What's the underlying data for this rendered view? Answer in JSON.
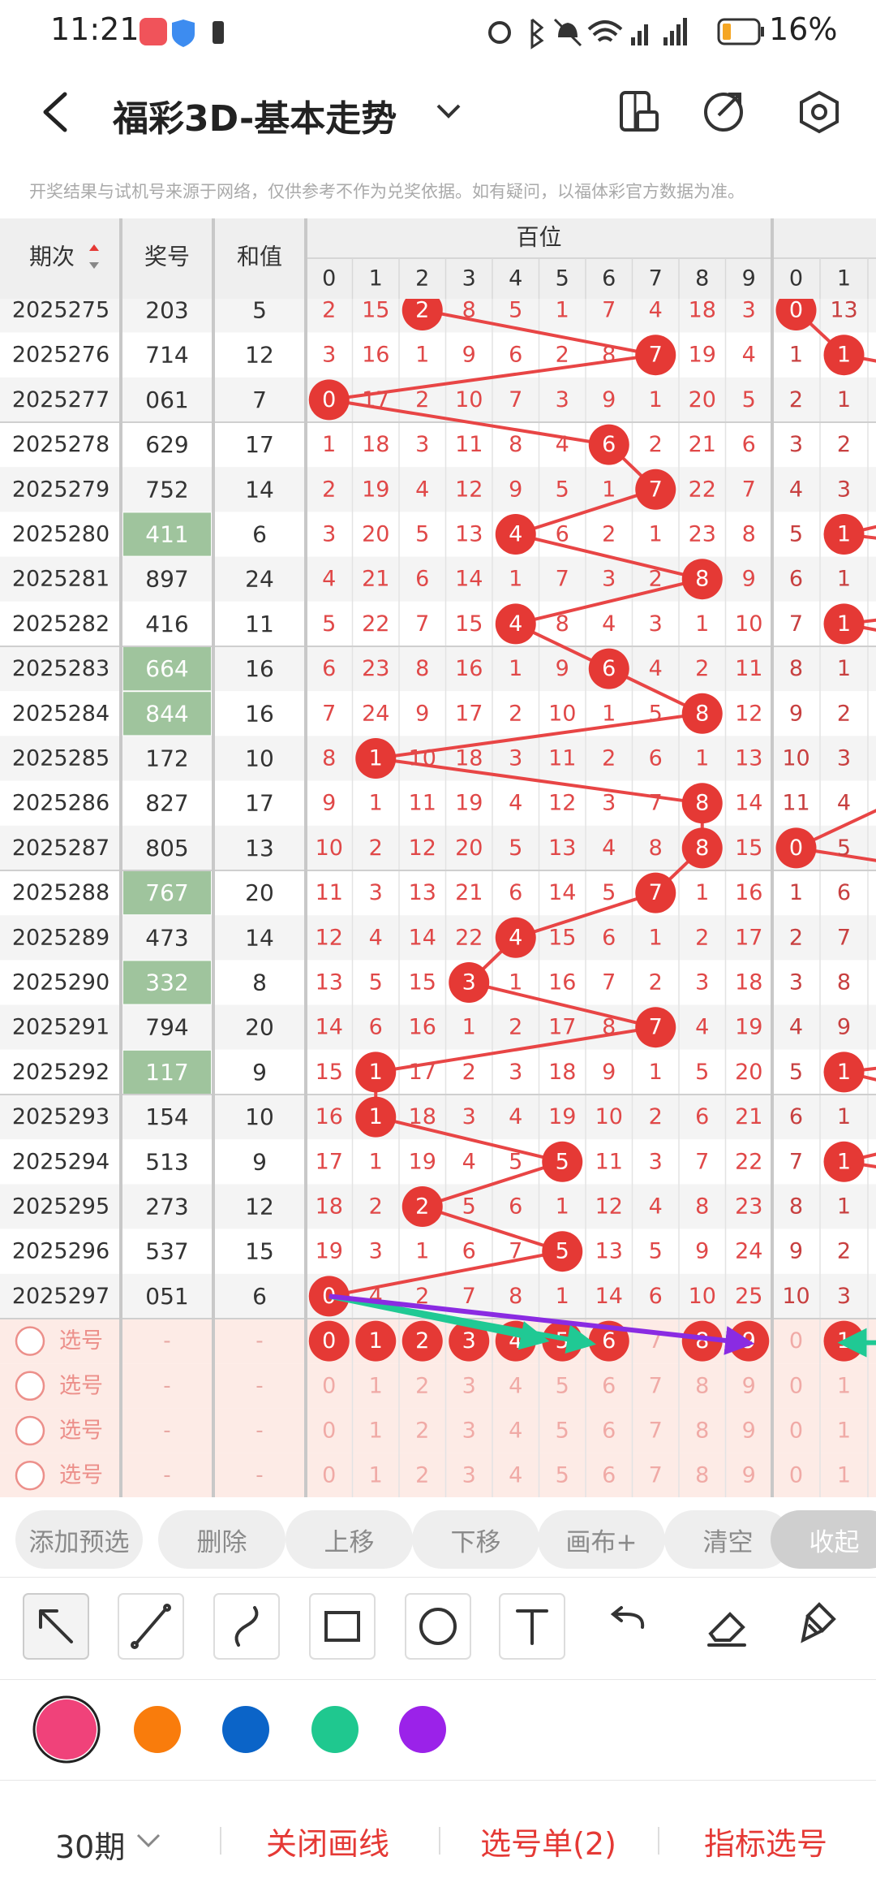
{
  "status_bar": {
    "time": "11:21",
    "battery": "16%"
  },
  "header": {
    "title": "福彩3D-基本走势"
  },
  "notice": "开奖结果与试机号来源于网络，仅供参考不作为兑奖依据。如有疑问，以福体彩官方数据为准。",
  "table": {
    "headers": {
      "period": "期次",
      "number": "奖号",
      "sum": "和值",
      "group": "百位"
    },
    "digit_columns": [
      0,
      1,
      2,
      3,
      4,
      5,
      6,
      7,
      8,
      9
    ],
    "next_group_columns": [
      0,
      1
    ],
    "rows": [
      {
        "period": "2025275",
        "number": "203",
        "sum": 5,
        "hundreds": [
          2,
          15,
          2,
          8,
          5,
          1,
          7,
          4,
          18,
          3
        ],
        "tens": [
          0,
          13
        ]
      },
      {
        "period": "2025276",
        "number": "714",
        "sum": 12,
        "hundreds": [
          3,
          16,
          1,
          9,
          6,
          2,
          8,
          7,
          19,
          4
        ],
        "tens": [
          1,
          1
        ]
      },
      {
        "period": "2025277",
        "number": "061",
        "sum": 7,
        "hundreds": [
          0,
          17,
          2,
          10,
          7,
          3,
          9,
          1,
          20,
          5
        ],
        "tens": [
          2,
          1
        ]
      },
      {
        "period": "2025278",
        "number": "629",
        "sum": 17,
        "hundreds": [
          1,
          18,
          3,
          11,
          8,
          4,
          6,
          2,
          21,
          6
        ],
        "tens": [
          3,
          2
        ]
      },
      {
        "period": "2025279",
        "number": "752",
        "sum": 14,
        "hundreds": [
          2,
          19,
          4,
          12,
          9,
          5,
          1,
          7,
          22,
          7
        ],
        "tens": [
          4,
          3
        ]
      },
      {
        "period": "2025280",
        "number": "411",
        "sum": 6,
        "hundreds": [
          3,
          20,
          5,
          13,
          4,
          6,
          2,
          1,
          23,
          8
        ],
        "tens": [
          5,
          1
        ]
      },
      {
        "period": "2025281",
        "number": "897",
        "sum": 24,
        "hundreds": [
          4,
          21,
          6,
          14,
          1,
          7,
          3,
          2,
          8,
          9
        ],
        "tens": [
          6,
          1
        ]
      },
      {
        "period": "2025282",
        "number": "416",
        "sum": 11,
        "hundreds": [
          5,
          22,
          7,
          15,
          4,
          8,
          4,
          3,
          1,
          10
        ],
        "tens": [
          7,
          1
        ]
      },
      {
        "period": "2025283",
        "number": "664",
        "sum": 16,
        "hundreds": [
          6,
          23,
          8,
          16,
          1,
          9,
          6,
          4,
          2,
          11
        ],
        "tens": [
          8,
          1
        ]
      },
      {
        "period": "2025284",
        "number": "844",
        "sum": 16,
        "hundreds": [
          7,
          24,
          9,
          17,
          2,
          10,
          1,
          5,
          8,
          12
        ],
        "tens": [
          9,
          2
        ]
      },
      {
        "period": "2025285",
        "number": "172",
        "sum": 10,
        "hundreds": [
          8,
          1,
          10,
          18,
          3,
          11,
          2,
          6,
          1,
          13
        ],
        "tens": [
          10,
          3
        ]
      },
      {
        "period": "2025286",
        "number": "827",
        "sum": 17,
        "hundreds": [
          9,
          1,
          11,
          19,
          4,
          12,
          3,
          7,
          8,
          14
        ],
        "tens": [
          11,
          4
        ]
      },
      {
        "period": "2025287",
        "number": "805",
        "sum": 13,
        "hundreds": [
          10,
          2,
          12,
          20,
          5,
          13,
          4,
          8,
          8,
          15
        ],
        "tens": [
          0,
          5
        ]
      },
      {
        "period": "2025288",
        "number": "767",
        "sum": 20,
        "hundreds": [
          11,
          3,
          13,
          21,
          6,
          14,
          5,
          7,
          1,
          16
        ],
        "tens": [
          1,
          6
        ]
      },
      {
        "period": "2025289",
        "number": "473",
        "sum": 14,
        "hundreds": [
          12,
          4,
          14,
          22,
          4,
          15,
          6,
          1,
          2,
          17
        ],
        "tens": [
          2,
          7
        ]
      },
      {
        "period": "2025290",
        "number": "332",
        "sum": 8,
        "hundreds": [
          13,
          5,
          15,
          3,
          1,
          16,
          7,
          2,
          3,
          18
        ],
        "tens": [
          3,
          8
        ]
      },
      {
        "period": "2025291",
        "number": "794",
        "sum": 20,
        "hundreds": [
          14,
          6,
          16,
          1,
          2,
          17,
          8,
          7,
          4,
          19
        ],
        "tens": [
          4,
          9
        ]
      },
      {
        "period": "2025292",
        "number": "117",
        "sum": 9,
        "hundreds": [
          15,
          1,
          17,
          2,
          3,
          18,
          9,
          1,
          5,
          20
        ],
        "tens": [
          5,
          1
        ]
      },
      {
        "period": "2025293",
        "number": "154",
        "sum": 10,
        "hundreds": [
          16,
          1,
          18,
          3,
          4,
          19,
          10,
          2,
          6,
          21
        ],
        "tens": [
          6,
          1
        ]
      },
      {
        "period": "2025294",
        "number": "513",
        "sum": 9,
        "hundreds": [
          17,
          1,
          19,
          4,
          5,
          5,
          11,
          3,
          7,
          22
        ],
        "tens": [
          7,
          1
        ]
      },
      {
        "period": "2025295",
        "number": "273",
        "sum": 12,
        "hundreds": [
          18,
          2,
          2,
          5,
          6,
          1,
          12,
          4,
          8,
          23
        ],
        "tens": [
          8,
          1
        ]
      },
      {
        "period": "2025296",
        "number": "537",
        "sum": 15,
        "hundreds": [
          19,
          3,
          1,
          6,
          7,
          5,
          13,
          5,
          9,
          24
        ],
        "tens": [
          9,
          2
        ]
      },
      {
        "period": "2025297",
        "number": "051",
        "sum": 6,
        "hundreds": [
          0,
          4,
          2,
          7,
          8,
          1,
          14,
          6,
          10,
          25
        ],
        "tens": [
          10,
          3
        ]
      }
    ],
    "select_rows": [
      {
        "label": "选号",
        "number": "-",
        "sum": "-",
        "selected_hundreds": [
          0,
          1,
          2,
          3,
          4,
          5,
          6,
          8,
          9
        ],
        "selected_tens": [
          1
        ]
      },
      {
        "label": "选号",
        "number": "-",
        "sum": "-",
        "selected_hundreds": [],
        "selected_tens": []
      },
      {
        "label": "选号",
        "number": "-",
        "sum": "-",
        "selected_hundreds": [],
        "selected_tens": []
      },
      {
        "label": "选号",
        "number": "-",
        "sum": "-",
        "selected_hundreds": [],
        "selected_tens": []
      }
    ]
  },
  "actions": [
    "添加预选",
    "删除",
    "上移",
    "下移",
    "画布+",
    "清空",
    "收起"
  ],
  "palette": [
    "#f0427a",
    "#f97c0c",
    "#0b64c8",
    "#1fc88f",
    "#9b22e9"
  ],
  "footer": {
    "period_filter": "30期",
    "items": [
      "关闭画线",
      "选号单(2)",
      "指标选号"
    ]
  }
}
